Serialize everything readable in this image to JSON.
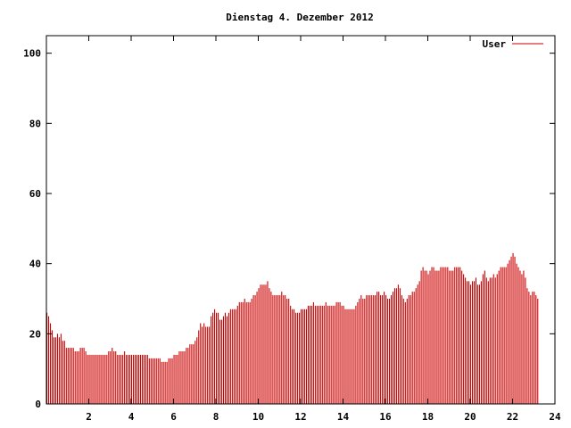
{
  "chart_data": {
    "type": "bar",
    "title": "Dienstag 4. Dezember 2012",
    "xlabel": "",
    "ylabel": "",
    "xlim": [
      0,
      24
    ],
    "ylim": [
      0,
      105
    ],
    "x_ticks": [
      2,
      4,
      6,
      8,
      10,
      12,
      14,
      16,
      18,
      20,
      22,
      24
    ],
    "y_ticks": [
      0,
      20,
      40,
      60,
      80,
      100
    ],
    "grid": false,
    "legend_position": "top-right",
    "series": [
      {
        "name": "User",
        "color": "#cc0000",
        "interval_minutes": 5,
        "values": [
          26,
          25,
          23,
          21,
          19,
          19,
          20,
          19,
          20,
          18,
          18,
          16,
          16,
          16,
          16,
          16,
          15,
          15,
          15,
          16,
          16,
          16,
          15,
          14,
          14,
          14,
          14,
          14,
          14,
          14,
          14,
          14,
          14,
          14,
          14,
          15,
          15,
          16,
          15,
          15,
          14,
          14,
          14,
          14,
          15,
          14,
          14,
          14,
          14,
          14,
          14,
          14,
          14,
          14,
          14,
          14,
          14,
          14,
          13,
          13,
          13,
          13,
          13,
          13,
          13,
          12,
          12,
          12,
          12,
          13,
          13,
          13,
          14,
          14,
          14,
          15,
          15,
          15,
          15,
          16,
          16,
          17,
          17,
          17,
          18,
          19,
          21,
          23,
          22,
          23,
          22,
          22,
          22,
          25,
          26,
          27,
          26,
          26,
          24,
          24,
          25,
          26,
          25,
          26,
          27,
          27,
          27,
          27,
          28,
          29,
          29,
          29,
          30,
          29,
          29,
          29,
          30,
          31,
          31,
          32,
          33,
          34,
          34,
          34,
          34,
          35,
          33,
          32,
          31,
          31,
          31,
          31,
          31,
          32,
          31,
          31,
          30,
          30,
          28,
          27,
          27,
          26,
          26,
          26,
          27,
          27,
          27,
          27,
          28,
          28,
          28,
          29,
          28,
          28,
          28,
          28,
          28,
          28,
          29,
          28,
          28,
          28,
          28,
          28,
          29,
          29,
          29,
          28,
          28,
          27,
          27,
          27,
          27,
          27,
          27,
          28,
          29,
          30,
          31,
          30,
          30,
          31,
          31,
          31,
          31,
          31,
          31,
          32,
          32,
          31,
          31,
          32,
          31,
          30,
          30,
          31,
          32,
          33,
          33,
          34,
          33,
          31,
          30,
          29,
          30,
          31,
          31,
          32,
          32,
          33,
          34,
          35,
          38,
          39,
          38,
          38,
          37,
          38,
          39,
          39,
          38,
          38,
          38,
          39,
          39,
          39,
          39,
          39,
          38,
          38,
          38,
          39,
          39,
          39,
          39,
          38,
          37,
          36,
          35,
          35,
          34,
          35,
          35,
          36,
          34,
          34,
          35,
          37,
          38,
          36,
          35,
          36,
          36,
          37,
          36,
          37,
          38,
          39,
          39,
          39,
          39,
          40,
          41,
          42,
          43,
          42,
          40,
          39,
          38,
          37,
          38,
          36,
          33,
          32,
          31,
          32,
          32,
          31,
          30
        ]
      }
    ]
  }
}
